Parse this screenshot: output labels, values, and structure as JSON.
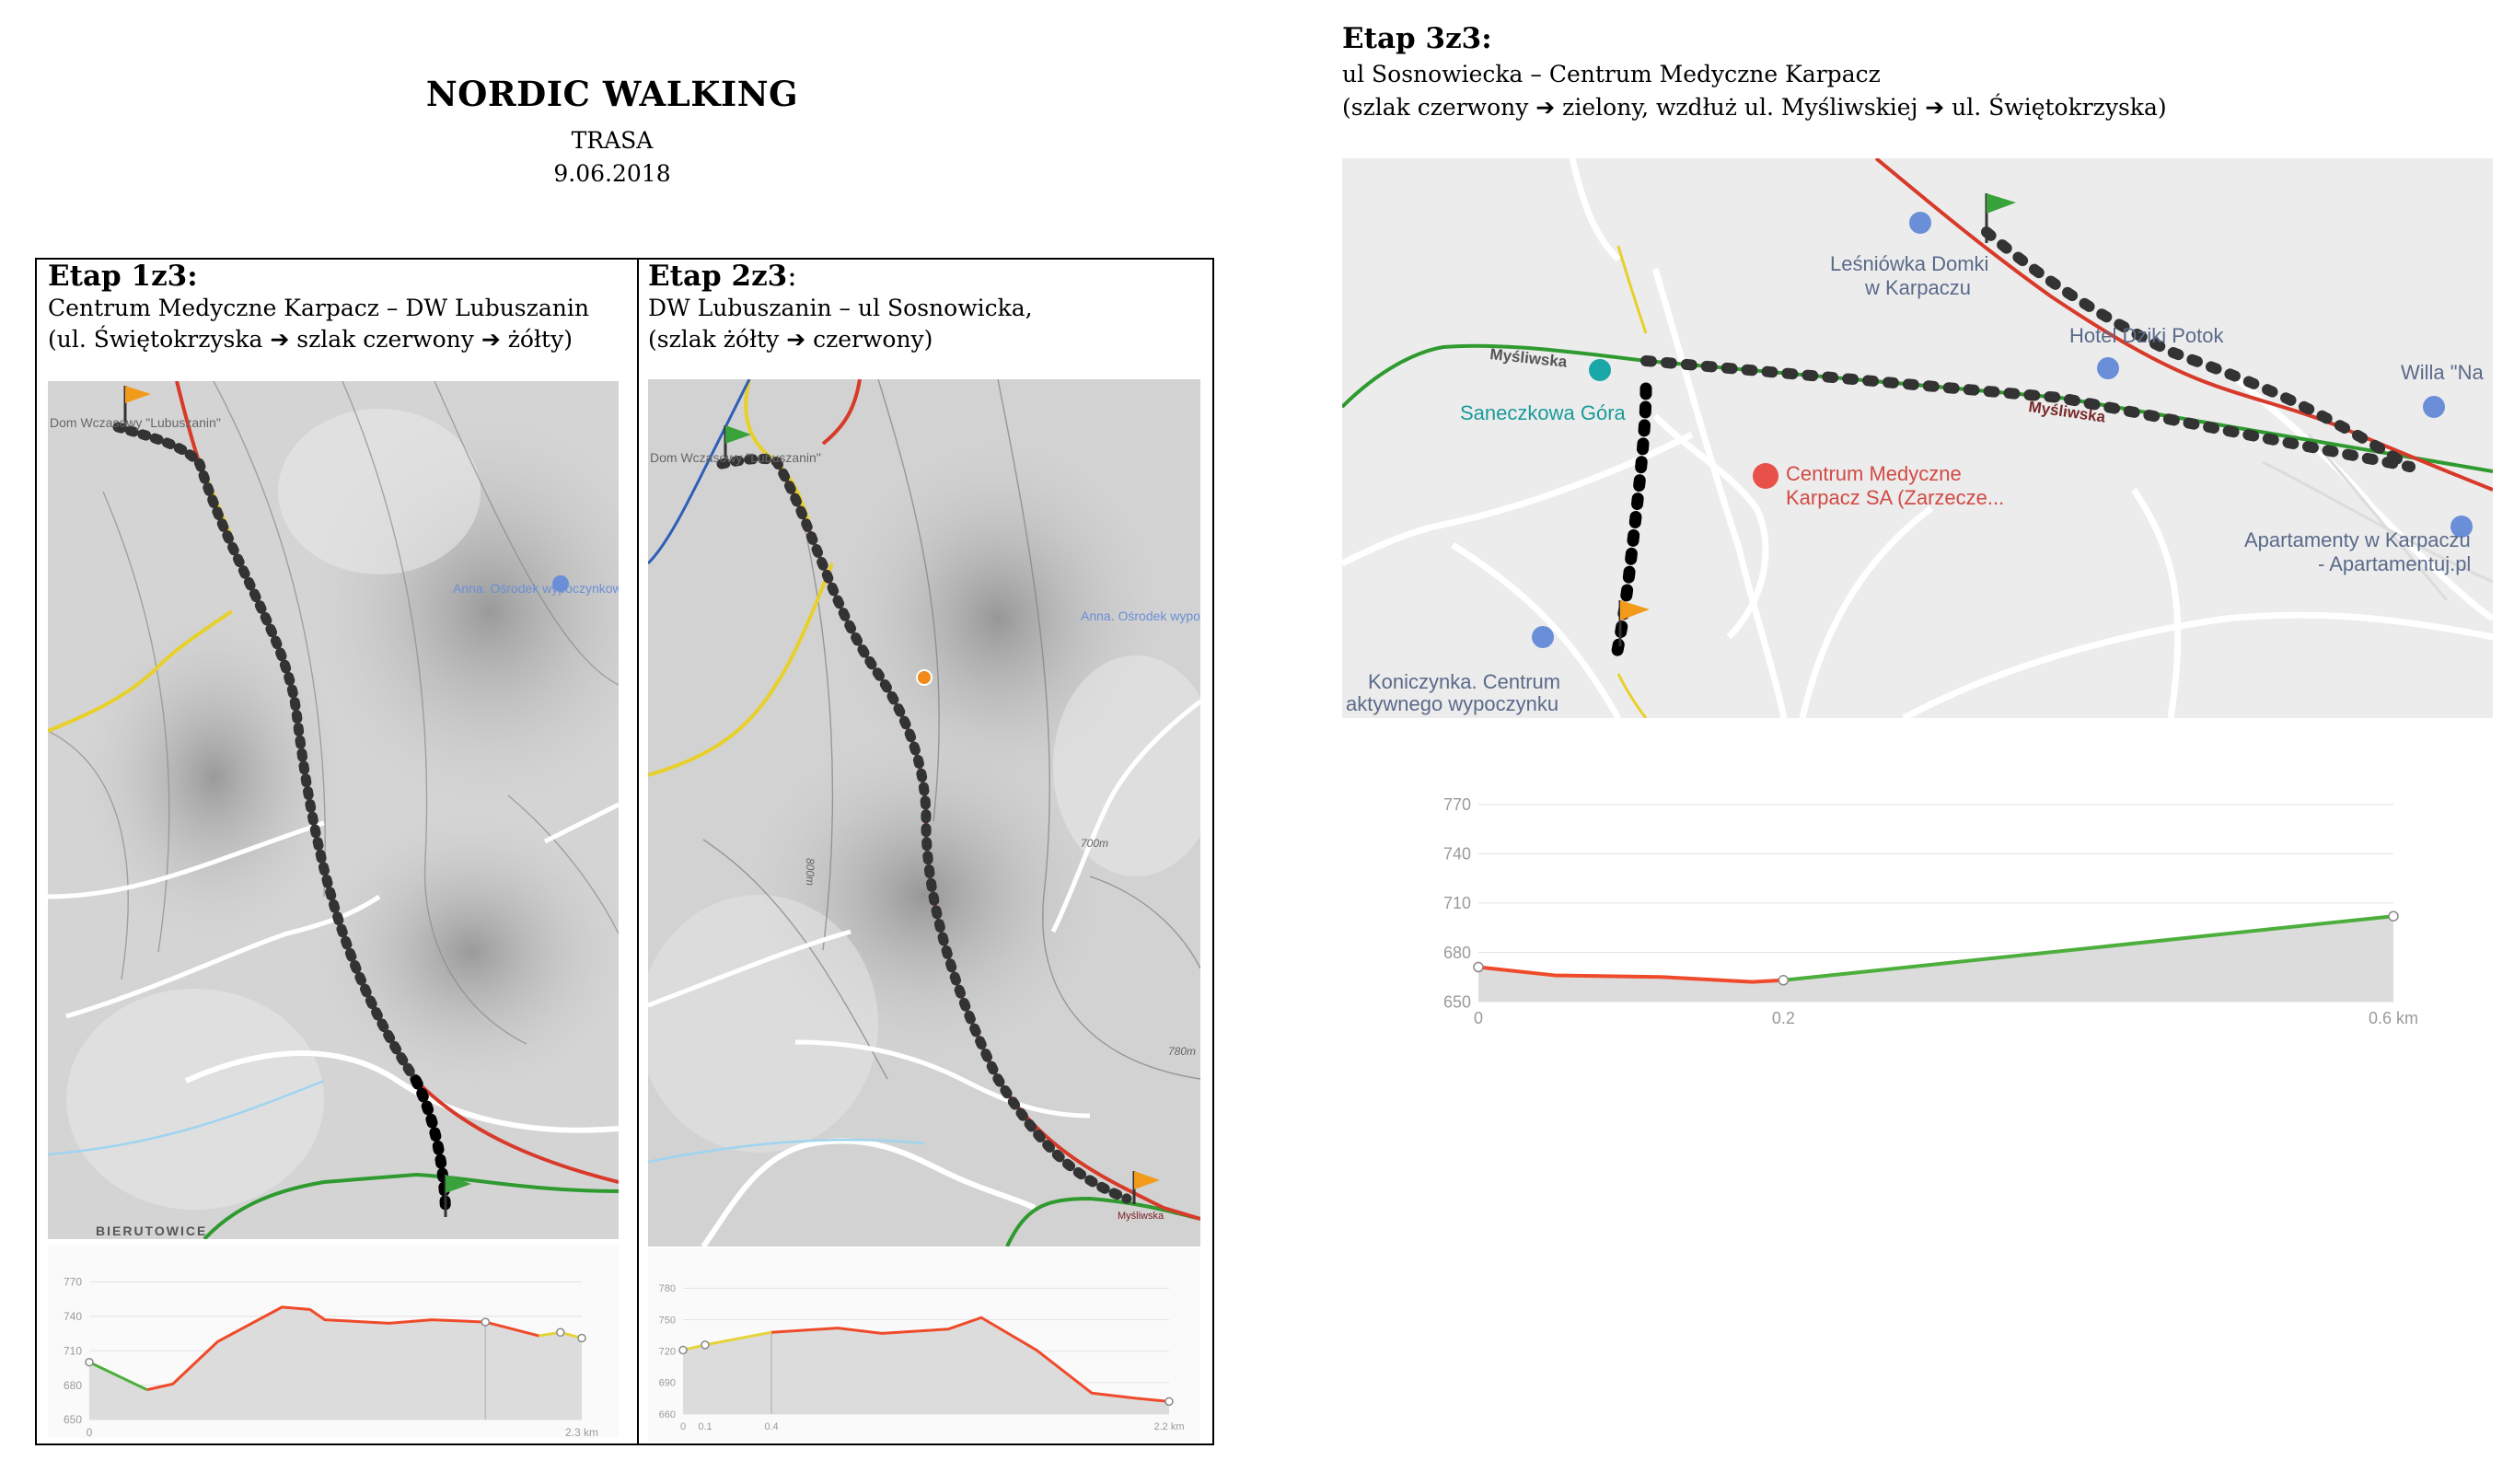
{
  "header": {
    "title": "NORDIC WALKING",
    "subtitle": "TRASA",
    "date": "9.06.2018"
  },
  "stages": [
    {
      "title": "Etap 1z3:",
      "line1": "Centrum Medyczne Karpacz – DW Lubuszanin",
      "line2": "(ul. Świętokrzyska ➔ szlak czerwony ➔ żółty)",
      "map_labels": {
        "place": "Dom Wczasowy \"Lubuszanin\"",
        "poi": "Anna. Ośrodek wypoczynkowy",
        "village": "BIERUTOWICE"
      }
    },
    {
      "title": "Etap 2z3",
      "title_suffix": ":",
      "line1": "DW Lubuszanin – ul Sosnowicka,",
      "line2": "(szlak żółty ➔ czerwony)",
      "map_labels": {
        "place": "Dom Wczasowy \"Lubuszanin\"",
        "poi": "Anna. Ośrodek wypoczynkowy",
        "contour1": "700m",
        "contour2": "800m",
        "contour3": "780m",
        "street": "Myśliwska"
      }
    },
    {
      "title": "Etap 3z3:",
      "line1": "ul Sosnowiecka – Centrum Medyczne Karpacz",
      "line2": "(szlak czerwony ➔ zielony, wzdłuż ul. Myśliwskiej ➔ ul. Świętokrzyska)",
      "map_labels": {
        "lesniowka_1": "Leśniówka Domki",
        "lesniowka_2": "w Karpaczu",
        "hotel": "Hotel Dziki Potok",
        "willa": "Willa \"Na",
        "mysliwska_1": "Myśliwska",
        "mysliwska_2": "Myśliwska",
        "saneczkowa": "Saneczkowa Góra",
        "centrum_1": "Centrum Medyczne",
        "centrum_2": "Karpacz SA (Zarzecze...",
        "apart_1": "Apartamenty w Karpaczu",
        "apart_2": "- Apartamentuj.pl",
        "koniczynka_1": "Koniczynka. Centrum",
        "koniczynka_2": "aktywnego wypoczynku"
      }
    }
  ],
  "chart_data": [
    {
      "type": "area",
      "title": "",
      "x_ticks": [
        "0",
        "2.3 km"
      ],
      "y_ticks": [
        650,
        680,
        710,
        740,
        770
      ],
      "ylim": [
        650,
        780
      ],
      "xlim": [
        0,
        2.3
      ],
      "series": [
        {
          "color": "#4caf3c",
          "x": [
            0,
            0.27
          ],
          "y": [
            700,
            676
          ]
        },
        {
          "color": "#ef4b2a",
          "x": [
            0.27,
            0.39,
            0.6,
            0.9,
            1.03,
            1.1,
            1.4,
            1.6,
            1.85,
            2.1
          ],
          "y": [
            676,
            681,
            718,
            748,
            746,
            737,
            734,
            737,
            735,
            723
          ]
        },
        {
          "color": "#e4d43a",
          "x": [
            2.1,
            2.2,
            2.3
          ],
          "y": [
            723,
            726,
            721
          ]
        }
      ],
      "markers": [
        0,
        1.85,
        2.2,
        2.3
      ],
      "cursor_x": 1.85
    },
    {
      "type": "area",
      "title": "",
      "x_ticks": [
        "0",
        "0.1",
        "0.4",
        "2.2 km"
      ],
      "y_ticks": [
        660,
        690,
        720,
        750,
        780
      ],
      "ylim": [
        660,
        790
      ],
      "xlim": [
        0,
        2.2
      ],
      "series": [
        {
          "color": "#e4d43a",
          "x": [
            0,
            0.1,
            0.4
          ],
          "y": [
            721,
            726,
            738
          ]
        },
        {
          "color": "#ef4b2a",
          "x": [
            0.4,
            0.7,
            0.9,
            1.2,
            1.35,
            1.6,
            1.85,
            2.05,
            2.2
          ],
          "y": [
            738,
            742,
            737,
            741,
            752,
            721,
            680,
            675,
            672
          ]
        }
      ],
      "markers": [
        0,
        0.1,
        2.2
      ],
      "cursor_x": 0.4
    },
    {
      "type": "area",
      "title": "",
      "x_ticks": [
        "0",
        "0.2",
        "0.6 km"
      ],
      "y_ticks": [
        650,
        680,
        710,
        740,
        770
      ],
      "ylim": [
        650,
        780
      ],
      "xlim": [
        0,
        0.6
      ],
      "series": [
        {
          "color": "#ef4b2a",
          "x": [
            0,
            0.05,
            0.12,
            0.18,
            0.2
          ],
          "y": [
            671,
            666,
            665,
            662,
            663
          ]
        },
        {
          "color": "#4caf3c",
          "x": [
            0.2,
            0.6
          ],
          "y": [
            663,
            702
          ]
        }
      ],
      "markers": [
        0,
        0.2,
        0.6
      ]
    }
  ]
}
